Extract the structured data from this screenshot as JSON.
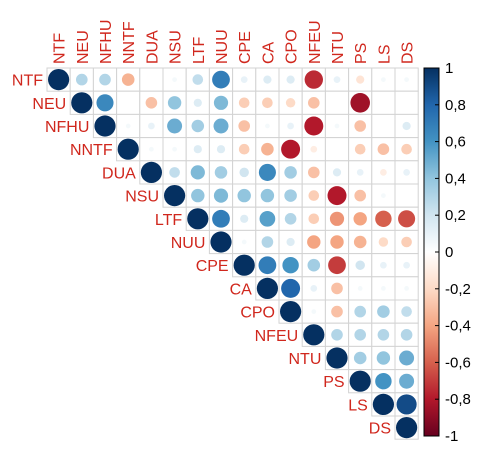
{
  "chart_data": {
    "type": "heatmap",
    "variables": [
      "NTF",
      "NEU",
      "NFHU",
      "NNTF",
      "DUA",
      "NSU",
      "LTF",
      "NUU",
      "CPE",
      "CA",
      "CPO",
      "NFEU",
      "NTU",
      "PS",
      "LS",
      "DS"
    ],
    "matrix": [
      [
        1.0,
        0.3,
        0.3,
        -0.35,
        0.0,
        0.05,
        0.25,
        0.7,
        0.1,
        0.15,
        0.15,
        -0.75,
        0.1,
        -0.15,
        0.05,
        0.05
      ],
      [
        null,
        1.0,
        0.65,
        0.0,
        -0.3,
        0.4,
        0.15,
        0.45,
        -0.25,
        -0.25,
        -0.2,
        -0.3,
        0.0,
        -0.85,
        0.0,
        0.0
      ],
      [
        null,
        null,
        1.0,
        0.05,
        0.1,
        0.5,
        0.35,
        0.5,
        -0.3,
        0.05,
        0.1,
        -0.8,
        0.05,
        -0.3,
        0.0,
        0.15
      ],
      [
        null,
        null,
        null,
        1.0,
        0.05,
        0.05,
        0.15,
        0.15,
        -0.25,
        -0.35,
        -0.8,
        -0.1,
        0.0,
        -0.25,
        -0.3,
        -0.25
      ],
      [
        null,
        null,
        null,
        null,
        1.0,
        0.25,
        0.45,
        0.35,
        0.2,
        0.65,
        0.35,
        -0.3,
        0.15,
        0.1,
        -0.1,
        0.1
      ],
      [
        null,
        null,
        null,
        null,
        null,
        1.0,
        0.4,
        0.45,
        0.4,
        0.4,
        0.35,
        -0.25,
        -0.8,
        -0.3,
        0.05,
        0.0
      ],
      [
        null,
        null,
        null,
        null,
        null,
        null,
        1.0,
        0.7,
        0.15,
        0.55,
        0.3,
        -0.25,
        -0.45,
        -0.4,
        -0.6,
        -0.65
      ],
      [
        null,
        null,
        null,
        null,
        null,
        null,
        null,
        1.0,
        0.05,
        0.3,
        0.15,
        -0.4,
        -0.4,
        -0.35,
        -0.2,
        -0.25
      ],
      [
        null,
        null,
        null,
        null,
        null,
        null,
        null,
        null,
        1.0,
        0.7,
        0.6,
        0.35,
        -0.7,
        0.2,
        0.1,
        0.1
      ],
      [
        null,
        null,
        null,
        null,
        null,
        null,
        null,
        null,
        null,
        1.0,
        0.8,
        0.1,
        -0.3,
        0.05,
        0.05,
        0.05
      ],
      [
        null,
        null,
        null,
        null,
        null,
        null,
        null,
        null,
        null,
        null,
        1.0,
        0.05,
        -0.3,
        0.3,
        0.35,
        0.25
      ],
      [
        null,
        null,
        null,
        null,
        null,
        null,
        null,
        null,
        null,
        null,
        null,
        1.0,
        0.3,
        0.3,
        0.3,
        0.3
      ],
      [
        null,
        null,
        null,
        null,
        null,
        null,
        null,
        null,
        null,
        null,
        null,
        null,
        1.0,
        0.35,
        0.4,
        0.5
      ],
      [
        null,
        null,
        null,
        null,
        null,
        null,
        null,
        null,
        null,
        null,
        null,
        null,
        null,
        1.0,
        0.6,
        0.5
      ],
      [
        null,
        null,
        null,
        null,
        null,
        null,
        null,
        null,
        null,
        null,
        null,
        null,
        null,
        null,
        1.0,
        0.9
      ],
      [
        null,
        null,
        null,
        null,
        null,
        null,
        null,
        null,
        null,
        null,
        null,
        null,
        null,
        null,
        null,
        1.0
      ]
    ],
    "colorbar": {
      "range": [
        -1,
        1
      ],
      "tick_labels": [
        "1",
        "0,8",
        "0,6",
        "0,4",
        "0,2",
        "0",
        "-0,2",
        "-0,4",
        "-0,6",
        "-0,8",
        "-1"
      ],
      "colors": [
        "#67001f",
        "#b2182b",
        "#d6604d",
        "#f4a582",
        "#fddbc7",
        "#ffffff",
        "#d1e5f0",
        "#92c5de",
        "#4393c3",
        "#2166ac",
        "#053061"
      ]
    },
    "label_color": "#d0271d",
    "grid": true
  }
}
